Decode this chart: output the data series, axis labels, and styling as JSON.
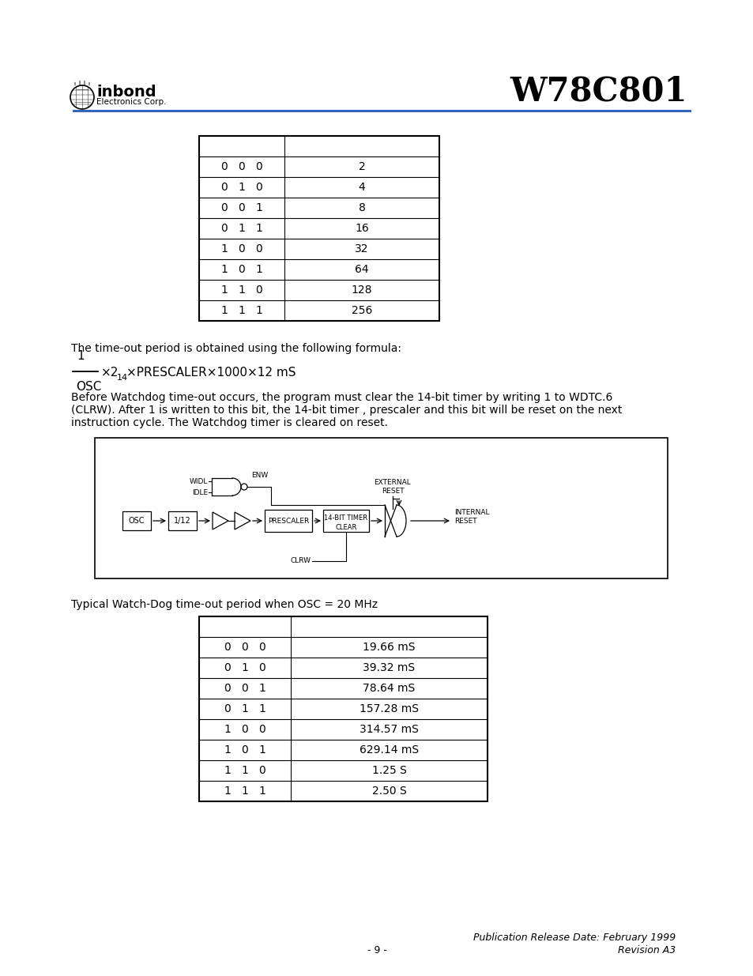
{
  "title": "W78C801",
  "table1_rows": [
    [
      "0   0   0",
      "2"
    ],
    [
      "0   1   0",
      "4"
    ],
    [
      "0   0   1",
      "8"
    ],
    [
      "0   1   1",
      "16"
    ],
    [
      "1   0   0",
      "32"
    ],
    [
      "1   0   1",
      "64"
    ],
    [
      "1   1   0",
      "128"
    ],
    [
      "1   1   1",
      "256"
    ]
  ],
  "formula_text": "The time-out period is obtained using the following formula:",
  "body_text1": "Before Watchdog time-out occurs, the program must clear the 14-bit timer by writing 1 to WDTC.6",
  "body_text2": "(CLRW). After 1 is written to this bit, the 14-bit timer , prescaler and this bit will be reset on the next",
  "body_text3": "instruction cycle. The Watchdog timer is cleared on reset.",
  "typical_label": "Typical Watch-Dog time-out period when OSC = 20 MHz",
  "table2_rows": [
    [
      "0   0   0",
      "19.66 mS"
    ],
    [
      "0   1   0",
      "39.32 mS"
    ],
    [
      "0   0   1",
      "78.64 mS"
    ],
    [
      "0   1   1",
      "157.28 mS"
    ],
    [
      "1   0   0",
      "314.57 mS"
    ],
    [
      "1   0   1",
      "629.14 mS"
    ],
    [
      "1   1   0",
      "1.25 S"
    ],
    [
      "1   1   1",
      "2.50 S"
    ]
  ],
  "footer_pub": "Publication Release Date: February 1999",
  "footer_rev": "Revision A3",
  "footer_page": "- 9 -",
  "line_color": "#3366bb",
  "bg_color": "#ffffff"
}
